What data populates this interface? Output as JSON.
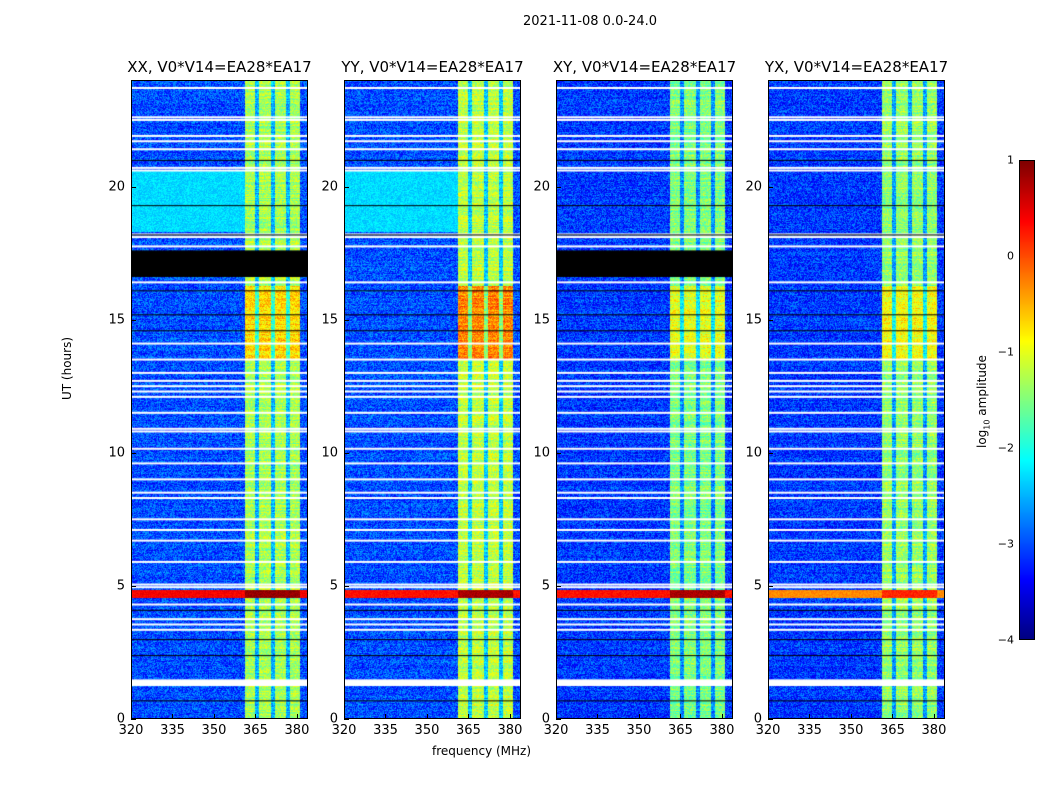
{
  "chart_data": {
    "type": "heatmap",
    "title": "2021-11-08 0.0-24.0",
    "xlabel": "frequency (MHz)",
    "ylabel": "UT (hours)",
    "xlim": [
      320,
      384
    ],
    "ylim": [
      0,
      24
    ],
    "xticks": [
      "320",
      "335",
      "350",
      "365",
      "380"
    ],
    "xtick_values": [
      320,
      335,
      350,
      365,
      380
    ],
    "yticks": [
      "0",
      "5",
      "10",
      "15",
      "20"
    ],
    "ytick_values": [
      0,
      5,
      10,
      15,
      20
    ],
    "colorbar": {
      "label_main": "log",
      "label_sub": "10",
      "label_rest": " amplitude",
      "colormap": "jet",
      "vmin": -4,
      "vmax": 1,
      "ticks": [
        "1",
        "0",
        "−1",
        "−2",
        "−3",
        "−4"
      ],
      "tick_values": [
        1,
        0,
        -1,
        -2,
        -3,
        -4
      ]
    },
    "band": {
      "start_mhz": 361,
      "end_mhz": 381,
      "dark_channels_mhz": [
        365.5,
        371,
        376.5
      ]
    },
    "panels": [
      {
        "title": "XX, V0*V14=EA28*EA17",
        "background": -3.0,
        "band_level": -1.3,
        "zero_block": [
          16.6,
          17.6
        ],
        "light_region": [
          18.3,
          20.6
        ],
        "storm_level": 0.4,
        "high_band_level": -0.7
      },
      {
        "title": "YY, V0*V14=EA28*EA17",
        "background": -3.0,
        "band_level": -1.2,
        "zero_block": null,
        "light_region": [
          18.3,
          20.6
        ],
        "storm_level": 0.3,
        "high_band_level": -0.3
      },
      {
        "title": "XY, V0*V14=EA28*EA17",
        "background": -3.1,
        "band_level": -1.5,
        "zero_block": [
          16.6,
          17.6
        ],
        "light_region": null,
        "storm_level": 0.3,
        "high_band_level": -1.0
      },
      {
        "title": "YX, V0*V14=EA28*EA17",
        "background": -3.1,
        "band_level": -1.4,
        "zero_block": null,
        "light_region": null,
        "storm_level": -0.3,
        "high_band_level": -0.9
      }
    ],
    "flagged_hours": [
      1.35,
      1.45,
      3.35,
      3.55,
      3.75,
      4.3,
      4.95,
      5.05,
      5.9,
      6.7,
      7.1,
      7.5,
      8.3,
      8.5,
      9.0,
      9.6,
      10.15,
      10.8,
      10.9,
      11.5,
      12.1,
      12.3,
      12.5,
      12.7,
      13.0,
      13.5,
      14.1,
      16.4,
      17.75,
      18.1,
      18.2,
      20.6,
      20.7,
      21.4,
      21.7,
      21.9,
      22.5,
      22.6,
      23.7
    ],
    "zero_hours": [
      0.7,
      2.4,
      3.0,
      4.1,
      14.6,
      15.2,
      16.1,
      18.2,
      19.3,
      21.0
    ],
    "storm_hours": [
      4.55,
      4.85
    ],
    "high_band_hours": [
      13.5,
      16.3
    ]
  }
}
